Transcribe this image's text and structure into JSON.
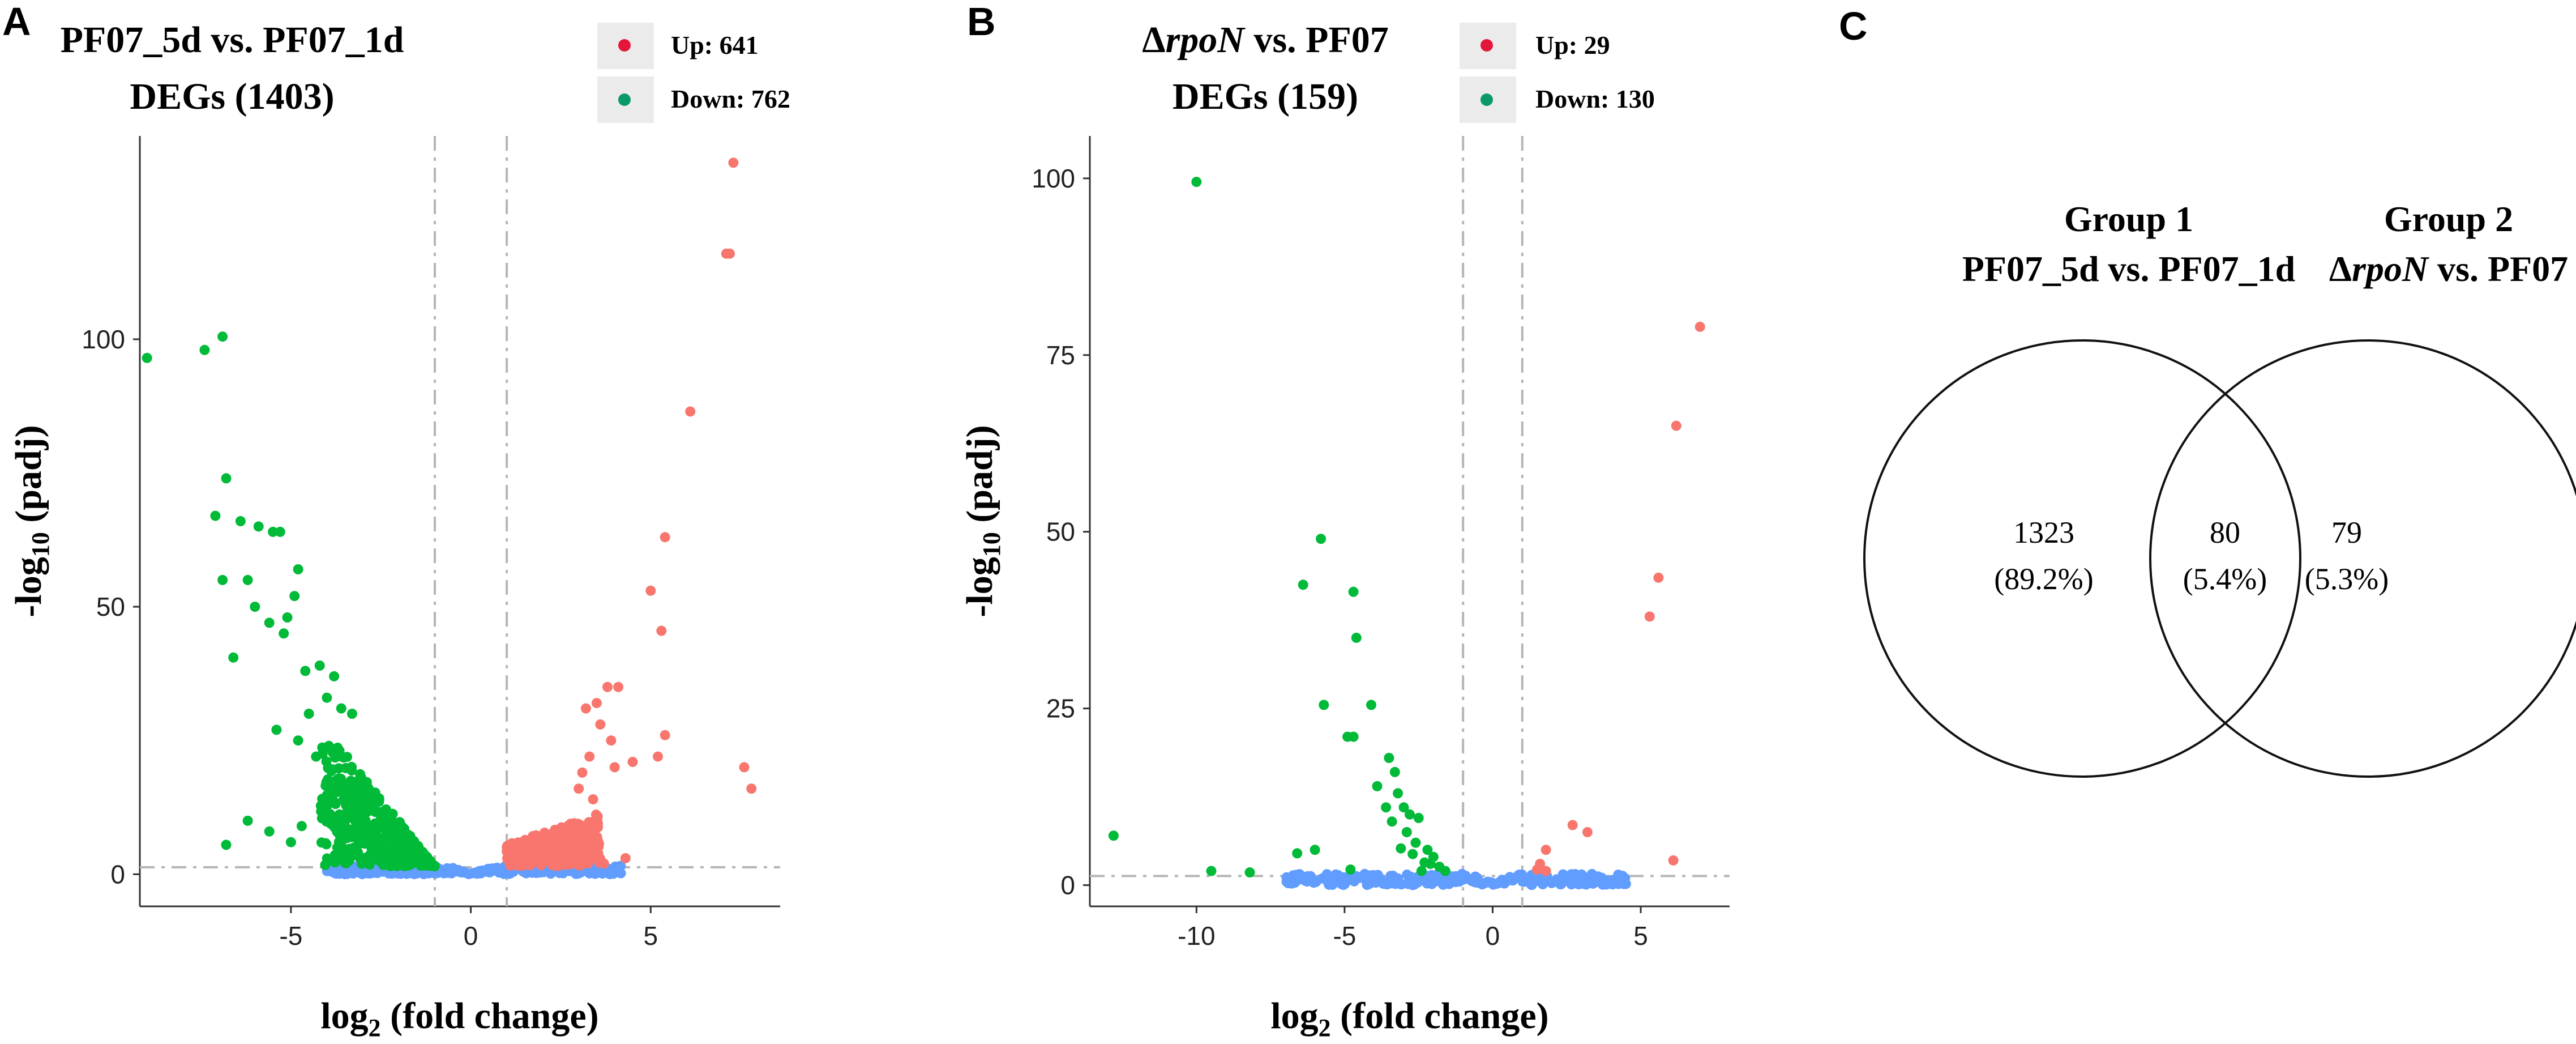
{
  "colors": {
    "up": "#F8766D",
    "down": "#00BA38",
    "ns": "#619CFF",
    "legend_up": "#E4173B",
    "legend_down": "#0A9A6A",
    "legend_box": "#EBEBEB",
    "guide": "#B5B5B5",
    "axis": "#333333"
  },
  "chart_data": [
    {
      "type": "scatter",
      "panel": "A",
      "title": "PF07_5d vs. PF07_1d",
      "subtitle": "DEGs (1403)",
      "legend": [
        {
          "label": "Up: 641",
          "series": "up"
        },
        {
          "label": "Down: 762",
          "series": "down"
        }
      ],
      "xlabel": "log2 (fold change)",
      "ylabel": "-log10 (padj)",
      "xlim": [
        -9.2,
        8.6
      ],
      "ylim": [
        -6,
        138
      ],
      "xticks": [
        -5,
        0,
        5
      ],
      "yticks": [
        0,
        50,
        100
      ],
      "vlines": [
        -1,
        1
      ],
      "hline": 1.3,
      "series": {
        "down": [
          [
            -9.0,
            96.5
          ],
          [
            -7.4,
            98
          ],
          [
            -6.9,
            100.5
          ],
          [
            -6.8,
            74
          ],
          [
            -7.1,
            67
          ],
          [
            -6.4,
            66
          ],
          [
            -6.9,
            55
          ],
          [
            -6.2,
            55
          ],
          [
            -5.9,
            65
          ],
          [
            -5.5,
            64
          ],
          [
            -5.3,
            64
          ],
          [
            -4.8,
            57
          ],
          [
            -6.0,
            50
          ],
          [
            -5.6,
            47
          ],
          [
            -5.1,
            48
          ],
          [
            -4.9,
            52
          ],
          [
            -6.6,
            40.5
          ],
          [
            -5.2,
            45
          ],
          [
            -4.6,
            38
          ],
          [
            -4.2,
            39
          ],
          [
            -3.8,
            37
          ],
          [
            -4.0,
            33
          ],
          [
            -4.5,
            30
          ],
          [
            -3.6,
            31
          ],
          [
            -3.3,
            30
          ],
          [
            -5.4,
            27
          ],
          [
            -4.8,
            25
          ],
          [
            -4.3,
            22
          ],
          [
            -6.2,
            10
          ],
          [
            -5.6,
            8
          ],
          [
            -5.0,
            6
          ],
          [
            -4.7,
            9
          ],
          [
            -6.8,
            5.5
          ]
        ],
        "down_cloud": {
          "xrange": [
            -4.2,
            -1.0
          ],
          "ymax": 27,
          "count": 520
        },
        "up": [
          [
            7.3,
            133
          ],
          [
            7.2,
            116
          ],
          [
            7.1,
            116
          ],
          [
            6.1,
            86.5
          ],
          [
            5.4,
            63
          ],
          [
            5.0,
            53
          ],
          [
            5.3,
            45.5
          ],
          [
            4.1,
            35
          ],
          [
            3.8,
            35
          ],
          [
            3.5,
            32
          ],
          [
            3.2,
            31
          ],
          [
            3.6,
            28
          ],
          [
            3.9,
            25
          ],
          [
            3.3,
            22
          ],
          [
            3.1,
            19
          ],
          [
            3.4,
            14
          ],
          [
            3.0,
            16
          ],
          [
            5.4,
            26
          ],
          [
            5.2,
            22
          ],
          [
            4.5,
            21
          ],
          [
            4.0,
            20
          ],
          [
            7.6,
            20
          ],
          [
            7.8,
            16
          ],
          [
            4.3,
            3
          ],
          [
            3.7,
            2
          ]
        ],
        "up_cloud": {
          "xrange": [
            1.0,
            3.6
          ],
          "ymax": 10,
          "count": 300
        },
        "ns_cloud": {
          "xrange": [
            -4.0,
            4.2
          ],
          "ymax": 1.6,
          "count": 320
        }
      }
    },
    {
      "type": "scatter",
      "panel": "B",
      "title_delta": "Δ",
      "title_italic": "rpoN",
      "title_rest": " vs. PF07",
      "subtitle": "DEGs (159)",
      "legend": [
        {
          "label": "Up: 29",
          "series": "up"
        },
        {
          "label": "Down: 130",
          "series": "down"
        }
      ],
      "xlabel": "log2 (fold change)",
      "ylabel": "-log10 (padj)",
      "xlim": [
        -13.6,
        8.0
      ],
      "ylim": [
        -3,
        106
      ],
      "xticks": [
        -10,
        -5,
        0,
        5
      ],
      "yticks": [
        0,
        25,
        50,
        75,
        100
      ],
      "vlines": [
        -1,
        1
      ],
      "hline": 1.3,
      "series": {
        "down": [
          [
            -10.0,
            99.5
          ],
          [
            -12.8,
            7
          ],
          [
            -9.5,
            2
          ],
          [
            -8.2,
            1.8
          ],
          [
            -5.8,
            49
          ],
          [
            -6.4,
            42.5
          ],
          [
            -4.7,
            41.5
          ],
          [
            -4.6,
            35
          ],
          [
            -5.7,
            25.5
          ],
          [
            -4.1,
            25.5
          ],
          [
            -4.9,
            21
          ],
          [
            -4.7,
            21
          ],
          [
            -3.5,
            18
          ],
          [
            -3.3,
            16
          ],
          [
            -3.9,
            14
          ],
          [
            -3.2,
            13
          ],
          [
            -3.0,
            11
          ],
          [
            -2.8,
            10
          ],
          [
            -2.5,
            9.5
          ],
          [
            -3.6,
            11
          ],
          [
            -3.4,
            9
          ],
          [
            -2.9,
            7.5
          ],
          [
            -2.6,
            6
          ],
          [
            -2.2,
            5
          ],
          [
            -2.0,
            4
          ],
          [
            -3.1,
            5.2
          ],
          [
            -2.7,
            4.4
          ],
          [
            -2.3,
            3.2
          ],
          [
            -1.8,
            2.6
          ],
          [
            -1.6,
            2
          ],
          [
            -6.0,
            5
          ],
          [
            -6.6,
            4.5
          ],
          [
            -4.8,
            2.2
          ],
          [
            -2.4,
            2
          ],
          [
            -2.1,
            3
          ]
        ],
        "up": [
          [
            7.0,
            79
          ],
          [
            6.2,
            65
          ],
          [
            5.6,
            43.5
          ],
          [
            5.3,
            38
          ],
          [
            6.1,
            3.5
          ],
          [
            2.7,
            8.5
          ],
          [
            3.2,
            7.5
          ],
          [
            1.8,
            5
          ],
          [
            1.6,
            3
          ],
          [
            1.5,
            2.2
          ],
          [
            1.8,
            2
          ]
        ],
        "ns_cloud": {
          "xrange": [
            -7.0,
            4.5
          ],
          "ymax": 1.6,
          "count": 280
        }
      }
    },
    {
      "type": "venn",
      "panel": "C",
      "sets": [
        {
          "line1": "Group 1",
          "line2": "PF07_5d vs. PF07_1d"
        },
        {
          "line1": "Group 2",
          "line2_delta": "Δ",
          "line2_italic": "rpoN",
          "line2_rest": " vs. PF07"
        }
      ],
      "regions": {
        "only_1": {
          "count": "1323",
          "pct": "(89.2%)"
        },
        "both": {
          "count": "80",
          "pct": "(5.4%)"
        },
        "only_2": {
          "count": "79",
          "pct": "(5.3%)"
        }
      }
    }
  ]
}
